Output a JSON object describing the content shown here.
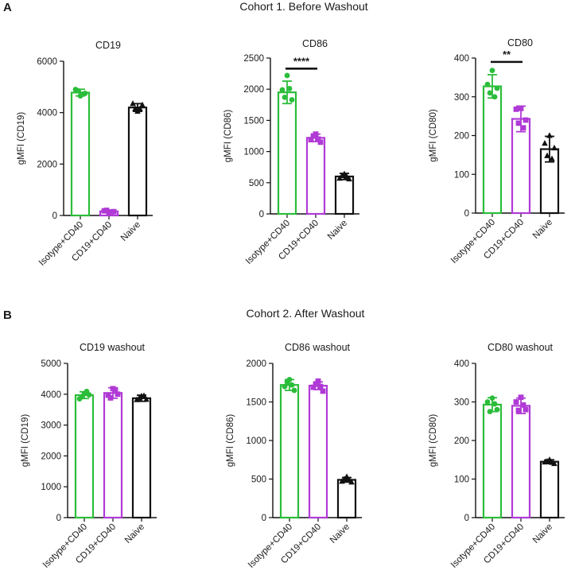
{
  "figure": {
    "panels": [
      {
        "letter": "A",
        "title": "Cohort 1. Before Washout"
      },
      {
        "letter": "B",
        "title": "Cohort 2. After Washout"
      }
    ]
  },
  "colors": {
    "isotype": "#2bbd3a",
    "cd19": "#b03ad6",
    "naive": "#111111"
  },
  "chart_data": [
    {
      "type": "bar",
      "title": "CD19",
      "ylabel": "gMFI (CD19)",
      "categories": [
        "Isotype+CD40",
        "CD19+CD40",
        "Naive"
      ],
      "values": [
        4780,
        160,
        4200
      ],
      "errors": [
        130,
        40,
        150
      ],
      "points": [
        [
          4650,
          4900,
          4750,
          4850,
          4720
        ],
        [
          110,
          180,
          150,
          200,
          140
        ],
        [
          4050,
          4350,
          4300,
          4150,
          4150
        ]
      ],
      "markers": [
        "circle",
        "square",
        "triangle"
      ],
      "ylim": [
        0,
        6000
      ],
      "yticks": [
        0,
        2000,
        4000,
        6000
      ],
      "sig": null
    },
    {
      "type": "bar",
      "title": "CD86",
      "ylabel": "gMFI (CD86)",
      "categories": [
        "Isotype+CD40",
        "CD19+CD40",
        "Naive"
      ],
      "values": [
        1950,
        1220,
        600
      ],
      "errors": [
        180,
        60,
        50
      ],
      "points": [
        [
          2220,
          1990,
          1830,
          1870,
          2010
        ],
        [
          1280,
          1190,
          1150,
          1250,
          1200
        ],
        [
          640,
          570,
          560,
          610,
          600
        ]
      ],
      "markers": [
        "circle",
        "square",
        "triangle"
      ],
      "ylim": [
        0,
        2500
      ],
      "yticks": [
        0,
        500,
        1000,
        1500,
        2000,
        2500
      ],
      "sig": {
        "from": 0,
        "to": 1,
        "label": "****",
        "y": 2330
      }
    },
    {
      "type": "bar",
      "title": "CD80",
      "ylabel": "gMFI (CD80)",
      "categories": [
        "Isotype+CD40",
        "CD19+CD40",
        "Naive"
      ],
      "values": [
        327,
        243,
        165
      ],
      "errors": [
        30,
        33,
        33
      ],
      "points": [
        [
          368,
          332,
          322,
          310,
          300
        ],
        [
          270,
          268,
          240,
          232,
          220
        ],
        [
          200,
          180,
          168,
          148,
          140
        ]
      ],
      "markers": [
        "circle",
        "square",
        "triangle"
      ],
      "ylim": [
        0,
        400
      ],
      "yticks": [
        0,
        100,
        200,
        300,
        400
      ],
      "sig": {
        "from": 0,
        "to": 1,
        "label": "**",
        "y": 390
      }
    },
    {
      "type": "bar",
      "title": "CD19 washout",
      "ylabel": "gMFI (CD19)",
      "categories": [
        "Isotype+CD40",
        "CD19+CD40",
        "Naive"
      ],
      "values": [
        3970,
        4040,
        3870
      ],
      "errors": [
        110,
        170,
        100
      ],
      "points": [
        [
          4020,
          3850,
          3980,
          3920,
          4090
        ],
        [
          4180,
          3970,
          4000,
          3880,
          4130
        ],
        [
          3940,
          3820,
          3830,
          3870,
          3950
        ]
      ],
      "markers": [
        "circle",
        "square",
        "triangle"
      ],
      "ylim": [
        0,
        5000
      ],
      "yticks": [
        0,
        1000,
        2000,
        3000,
        4000,
        5000
      ],
      "sig": null
    },
    {
      "type": "bar",
      "title": "CD86 washout",
      "ylabel": "gMFI (CD86)",
      "categories": [
        "Isotype+CD40",
        "CD19+CD40",
        "Naive"
      ],
      "values": [
        1720,
        1710,
        490
      ],
      "errors": [
        70,
        50,
        30
      ],
      "points": [
        [
          1790,
          1700,
          1650,
          1760,
          1720
        ],
        [
          1770,
          1690,
          1640,
          1730,
          1700
        ],
        [
          530,
          470,
          460,
          500,
          490
        ]
      ],
      "markers": [
        "circle",
        "square",
        "triangle"
      ],
      "ylim": [
        0,
        2000
      ],
      "yticks": [
        0,
        500,
        1000,
        1500,
        2000
      ],
      "sig": null
    },
    {
      "type": "bar",
      "title": "CD80 washout",
      "ylabel": "gMFI (CD80)",
      "categories": [
        "Isotype+CD40",
        "CD19+CD40",
        "Naive"
      ],
      "values": [
        293,
        290,
        145
      ],
      "errors": [
        18,
        20,
        5
      ],
      "points": [
        [
          310,
          300,
          280,
          275,
          295
        ],
        [
          312,
          300,
          280,
          278,
          292
        ],
        [
          150,
          144,
          140,
          146,
          143
        ]
      ],
      "markers": [
        "circle",
        "square",
        "triangle"
      ],
      "ylim": [
        0,
        400
      ],
      "yticks": [
        0,
        100,
        200,
        300,
        400
      ],
      "sig": null
    }
  ]
}
